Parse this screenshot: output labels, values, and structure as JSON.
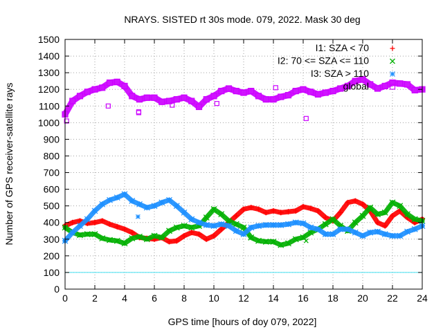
{
  "chart_data": {
    "type": "scatter",
    "title": "NRAYS. SISTED rt 30s mode. 079, 2022. Mask 30 deg",
    "xlabel": "GPS time [hours of doy 079, 2022]",
    "ylabel": "Number of GPS receiver-satellite rays",
    "xlim": [
      0,
      24
    ],
    "ylim": [
      0,
      1500
    ],
    "xticks": [
      0,
      2,
      4,
      6,
      8,
      10,
      12,
      14,
      16,
      18,
      20,
      22,
      24
    ],
    "yticks": [
      0,
      100,
      200,
      300,
      400,
      500,
      600,
      700,
      800,
      900,
      1000,
      1100,
      1200,
      1300,
      1400,
      1500
    ],
    "grid": true,
    "legend_position": "top-right",
    "reference_line": {
      "y": 100,
      "color": "#40e0f0"
    },
    "series": [
      {
        "name": "I1: SZA < 70",
        "marker": "+",
        "color": "#ff0000",
        "x": [
          0,
          0.5,
          1,
          1.5,
          2,
          2.5,
          3,
          3.5,
          4,
          4.5,
          5,
          5.5,
          6,
          6.5,
          7,
          7.5,
          8,
          8.5,
          9,
          9.5,
          10,
          10.5,
          11,
          11.5,
          12,
          12.5,
          13,
          13.5,
          14,
          14.5,
          15,
          15.5,
          16,
          16.5,
          17,
          17.5,
          18,
          18.5,
          19,
          19.5,
          20,
          20.5,
          21,
          21.5,
          22,
          22.5,
          23,
          23.5,
          24
        ],
        "y": [
          380,
          400,
          410,
          395,
          400,
          410,
          390,
          375,
          360,
          340,
          310,
          305,
          300,
          310,
          285,
          290,
          320,
          340,
          330,
          300,
          320,
          360,
          400,
          440,
          480,
          490,
          480,
          460,
          470,
          460,
          465,
          470,
          495,
          485,
          470,
          430,
          410,
          460,
          520,
          530,
          510,
          470,
          400,
          380,
          440,
          470,
          430,
          400,
          420
        ]
      },
      {
        "name": "I2: 70 <= SZA <= 110",
        "marker": "x",
        "color": "#00b000",
        "x": [
          0,
          0.5,
          1,
          1.5,
          2,
          2.5,
          3,
          3.5,
          4,
          4.5,
          5,
          5.5,
          6,
          6.5,
          7,
          7.5,
          8,
          8.5,
          9,
          9.5,
          10,
          10.5,
          11,
          11.5,
          12,
          12.5,
          13,
          13.5,
          14,
          14.5,
          15,
          15.5,
          16,
          16.5,
          17,
          17.5,
          18,
          18.5,
          19,
          19.5,
          20,
          20.5,
          21,
          21.5,
          22,
          22.5,
          23,
          23.5,
          24
        ],
        "y": [
          370,
          340,
          325,
          330,
          330,
          305,
          295,
          290,
          275,
          305,
          315,
          300,
          320,
          310,
          350,
          370,
          380,
          370,
          380,
          430,
          480,
          450,
          410,
          390,
          370,
          310,
          290,
          285,
          285,
          265,
          275,
          300,
          310,
          340,
          360,
          390,
          420,
          380,
          350,
          400,
          440,
          490,
          450,
          460,
          520,
          500,
          450,
          420,
          410
        ]
      },
      {
        "name": "I3: SZA > 110",
        "marker": "*",
        "color": "#1e90ff",
        "x": [
          0,
          0.5,
          1,
          1.5,
          2,
          2.5,
          3,
          3.5,
          4,
          4.5,
          5,
          5.5,
          6,
          6.5,
          7,
          7.5,
          8,
          8.5,
          9,
          9.5,
          10,
          10.5,
          11,
          11.5,
          12,
          12.5,
          13,
          13.5,
          14,
          14.5,
          15,
          15.5,
          16,
          16.5,
          17,
          17.5,
          18,
          18.5,
          19,
          19.5,
          20,
          20.5,
          21,
          21.5,
          22,
          22.5,
          23,
          23.5,
          24
        ],
        "y": [
          290,
          340,
          380,
          420,
          470,
          510,
          535,
          550,
          570,
          530,
          510,
          490,
          500,
          520,
          535,
          500,
          460,
          420,
          400,
          385,
          380,
          390,
          380,
          350,
          330,
          370,
          380,
          385,
          385,
          385,
          390,
          400,
          395,
          370,
          360,
          330,
          330,
          360,
          360,
          340,
          320,
          340,
          345,
          330,
          320,
          320,
          345,
          360,
          380
        ]
      },
      {
        "name": "global",
        "marker": "square",
        "color": "#cc00ff",
        "x": [
          0,
          0.5,
          1,
          1.5,
          2,
          2.5,
          3,
          3.5,
          4,
          4.5,
          5,
          5.5,
          6,
          6.5,
          7,
          7.5,
          8,
          8.5,
          9,
          9.5,
          10,
          10.5,
          11,
          11.5,
          12,
          12.5,
          13,
          13.5,
          14,
          14.5,
          15,
          15.5,
          16,
          16.5,
          17,
          17.5,
          18,
          18.5,
          19,
          19.5,
          20,
          20.5,
          21,
          21.5,
          22,
          22.5,
          23,
          23.5,
          24
        ],
        "y": [
          1050,
          1130,
          1160,
          1185,
          1200,
          1210,
          1240,
          1245,
          1220,
          1160,
          1140,
          1150,
          1150,
          1125,
          1130,
          1140,
          1150,
          1130,
          1095,
          1140,
          1160,
          1190,
          1205,
          1190,
          1180,
          1190,
          1160,
          1140,
          1140,
          1155,
          1165,
          1190,
          1200,
          1185,
          1170,
          1180,
          1190,
          1205,
          1220,
          1250,
          1260,
          1230,
          1205,
          1220,
          1240,
          1235,
          1230,
          1195,
          1200
        ]
      }
    ],
    "outliers": [
      {
        "series": "global",
        "x": 0.1,
        "y": 1010
      },
      {
        "series": "global",
        "x": 2.9,
        "y": 1100
      },
      {
        "series": "global",
        "x": 4.95,
        "y": 1065
      },
      {
        "series": "global",
        "x": 4.95,
        "y": 1060
      },
      {
        "series": "global",
        "x": 7.2,
        "y": 1105
      },
      {
        "series": "global",
        "x": 10.2,
        "y": 1115
      },
      {
        "series": "global",
        "x": 14.15,
        "y": 1210
      },
      {
        "series": "global",
        "x": 16.2,
        "y": 1025
      },
      {
        "series": "I3: SZA > 110",
        "x": 4.9,
        "y": 435
      },
      {
        "series": "I2: 70 <= SZA <= 110",
        "x": 16.2,
        "y": 290
      }
    ]
  }
}
